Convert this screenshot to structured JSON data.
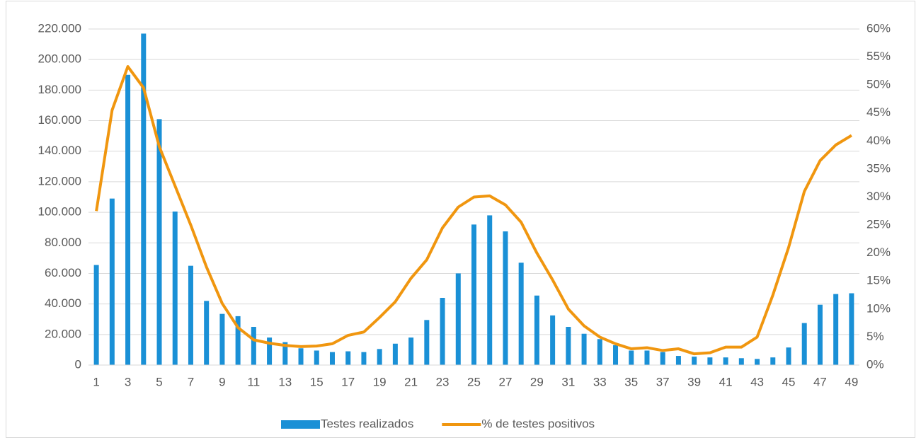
{
  "chart_data": {
    "type": "bar_line",
    "categories": [
      1,
      null,
      3,
      null,
      5,
      null,
      7,
      null,
      9,
      null,
      11,
      null,
      13,
      null,
      15,
      null,
      17,
      null,
      19,
      null,
      21,
      null,
      23,
      null,
      25,
      null,
      27,
      null,
      29,
      null,
      31,
      null,
      33,
      null,
      35,
      null,
      37,
      null,
      39,
      null,
      41,
      null,
      43,
      null,
      45,
      null,
      47,
      null,
      49
    ],
    "series": [
      {
        "name": "Testes realizados",
        "type": "bar",
        "color": "#1a90d6",
        "values": [
          65500,
          109000,
          190000,
          217000,
          161000,
          100500,
          65000,
          42000,
          33500,
          32000,
          25000,
          18000,
          15000,
          11000,
          9500,
          8500,
          9000,
          8500,
          10500,
          14000,
          18000,
          29500,
          44000,
          60000,
          92000,
          98000,
          87500,
          67000,
          45500,
          32500,
          25000,
          20500,
          17000,
          13000,
          9500,
          9500,
          8500,
          6000,
          5500,
          5000,
          5000,
          4500,
          4000,
          5000,
          11500,
          27500,
          39500,
          46500,
          47000
        ]
      },
      {
        "name": "% de testes positivos",
        "type": "line",
        "axis": "y2",
        "color": "#f0960f",
        "values": [
          27.5,
          45.5,
          53.3,
          49.5,
          39,
          32,
          25,
          17.5,
          11,
          6.7,
          4.5,
          3.9,
          3.5,
          3.3,
          3.4,
          3.8,
          5.3,
          5.9,
          8.5,
          11.3,
          15.5,
          18.8,
          24.5,
          28.2,
          30,
          30.2,
          28.6,
          25.5,
          20,
          15.2,
          10,
          7,
          5,
          3.8,
          2.9,
          3.1,
          2.6,
          2.9,
          2,
          2.2,
          3.2,
          3.2,
          5,
          12.5,
          21,
          31,
          36.5,
          39.3,
          41
        ]
      }
    ],
    "ylim": [
      0,
      220000
    ],
    "yticks": [
      0,
      {
        "value": 20000,
        "label": "20.000"
      },
      {
        "value": 40000,
        "label": "40.000"
      },
      {
        "value": 60000,
        "label": "60.000"
      },
      {
        "value": 80000,
        "label": "80.000"
      },
      {
        "value": 100000,
        "label": "100.000"
      },
      {
        "value": 120000,
        "label": "120.000"
      },
      {
        "value": 140000,
        "label": "140.000"
      },
      {
        "value": 160000,
        "label": "160.000"
      },
      {
        "value": 180000,
        "label": "180.000"
      },
      {
        "value": 200000,
        "label": "200.000"
      },
      {
        "value": 220000,
        "label": "220.000"
      }
    ],
    "y2lim": [
      0,
      60
    ],
    "y2ticks": [
      {
        "value": 0,
        "label": "0%"
      },
      {
        "value": 5,
        "label": "5%"
      },
      {
        "value": 10,
        "label": "10%"
      },
      {
        "value": 15,
        "label": "15%"
      },
      {
        "value": 20,
        "label": "20%"
      },
      {
        "value": 25,
        "label": "25%"
      },
      {
        "value": 30,
        "label": "30%"
      },
      {
        "value": 35,
        "label": "35%"
      },
      {
        "value": 40,
        "label": "40%"
      },
      {
        "value": 45,
        "label": "45%"
      },
      {
        "value": 50,
        "label": "50%"
      },
      {
        "value": 55,
        "label": "55%"
      },
      {
        "value": 60,
        "label": "60%"
      }
    ],
    "grid": true,
    "legend": "bottom"
  }
}
